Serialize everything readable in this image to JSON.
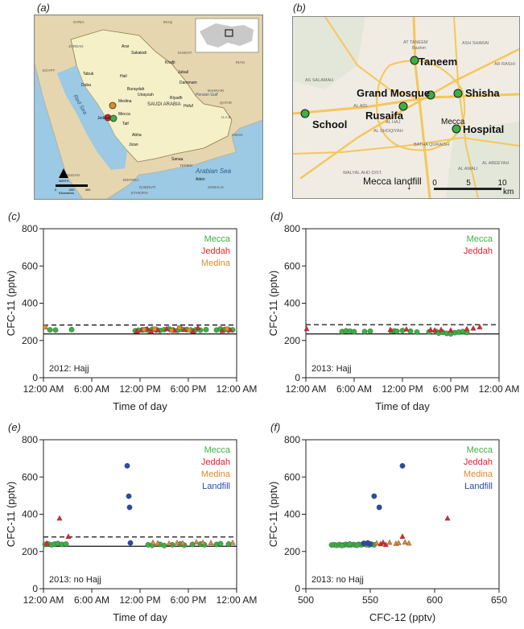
{
  "panels": {
    "a": {
      "label": "(a)",
      "map": {
        "sea_labels": [
          "Red Sea",
          "Persian Gulf",
          "Arabian Sea"
        ],
        "places": [
          "SYRIA",
          "IRAQ",
          "IRAN",
          "EGYPT",
          "JORDAN",
          "KUWAIT",
          "QATAR",
          "U.A.E.",
          "OMAN",
          "YEMEN",
          "SUDAN",
          "ERITREA",
          "ETHIOPIA",
          "SOMALIA",
          "DJIBOUTI",
          "BAHRAIN",
          "SAUDI ARABIA",
          "Arar",
          "Sakakah",
          "Tabuk",
          "Duba",
          "Hail",
          "Buraydah",
          "Medina",
          "Jeddah",
          "Mecca",
          "Taif",
          "Abha",
          "Jizan",
          "Riyadh",
          "Hofuf",
          "Dammam",
          "Jubail",
          "Khafji",
          "Unayzah",
          "Sanaa",
          "Aden"
        ],
        "north": "NORTH",
        "scale": [
          "0",
          "200",
          "400"
        ],
        "scale_unit": "Kilometres"
      }
    },
    "b": {
      "label": "(b)",
      "map": {
        "sites": [
          "Taneem",
          "Grand Mosque",
          "Shisha",
          "School",
          "Rusaifa",
          "Mecca",
          "Hospital"
        ],
        "landfill_label": "Mecca landfill",
        "landfill_arrow": "↓",
        "district_labels": [
          "AT TANEEM",
          "Bashm",
          "ASH SHARAI",
          "AR RASHI",
          "AS SALAMAH",
          "AL HAJ",
          "AL ADL",
          "AL SHOQIYAH",
          "BATHA QURAISH",
          "WALYAL AHD DIST.",
          "AL AWALI",
          "AL ABEEYAH"
        ],
        "scale_ticks": [
          "0",
          "5",
          "10"
        ],
        "scale_unit": "km"
      }
    }
  },
  "colors": {
    "Mecca": "#3cb043",
    "Jeddah": "#e8212b",
    "Medina": "#e08a2c",
    "Landfill": "#2b4aa8",
    "map_land": "#f5f0c8",
    "map_sea": "#9cc9e3",
    "map_other_land": "#e6d6b0",
    "street_bg": "#f0ece4",
    "road": "#f5c65a"
  },
  "chart_data": [
    {
      "panel": "(c)",
      "type": "scatter",
      "x_type": "time",
      "annotation": "2012: Hajj",
      "xlabel": "Time of day",
      "ylabel": "CFC-11 (pptv)",
      "xlim": [
        0,
        24
      ],
      "ylim": [
        0,
        800
      ],
      "xticks": [
        0,
        6,
        12,
        18,
        24
      ],
      "xticklabels": [
        "12:00 AM",
        "6:00 AM",
        "12:00 PM",
        "6:00 PM",
        "12:00 AM"
      ],
      "yticks": [
        0,
        200,
        400,
        600,
        800
      ],
      "yticklabels": [
        "0",
        "200",
        "400",
        "600",
        "800"
      ],
      "hlines": {
        "dashed": 283,
        "solid": 235
      },
      "legend": [
        "Mecca",
        "Jeddah",
        "Medina"
      ],
      "series": [
        {
          "name": "Mecca",
          "marker": "circle",
          "x": [
            0.8,
            1.5,
            3.5,
            11.4,
            11.8,
            12.3,
            12.7,
            13.1,
            13.5,
            14.0,
            14.5,
            15.0,
            15.6,
            16.1,
            16.7,
            17.2,
            17.8,
            18.3,
            18.9,
            19.5,
            20.2,
            21.5,
            22.0,
            22.5,
            23.0,
            23.5
          ],
          "y": [
            257,
            256,
            258,
            252,
            255,
            257,
            258,
            253,
            260,
            256,
            254,
            258,
            262,
            257,
            255,
            260,
            258,
            256,
            257,
            255,
            258,
            256,
            262,
            258,
            255,
            257
          ]
        },
        {
          "name": "Jeddah",
          "marker": "triangle",
          "x": [
            11.6,
            12.2,
            12.9,
            13.4,
            14.2,
            15.3,
            16.3,
            17.5,
            18.6,
            19.2,
            22.2,
            23.2
          ],
          "y": [
            250,
            255,
            262,
            248,
            257,
            262,
            253,
            258,
            250,
            268,
            252,
            256
          ]
        },
        {
          "name": "Medina",
          "marker": "square",
          "x": [
            0.2,
            12.5,
            13.8,
            15.9,
            16.9,
            18.1,
            22.8
          ],
          "y": [
            272,
            258,
            262,
            255,
            268,
            257,
            262
          ]
        }
      ]
    },
    {
      "panel": "(d)",
      "type": "scatter",
      "x_type": "time",
      "annotation": "2013: Hajj",
      "xlabel": "Time of day",
      "ylabel": "CFC-11 (pptv)",
      "xlim": [
        0,
        24
      ],
      "ylim": [
        0,
        800
      ],
      "xticks": [
        0,
        6,
        12,
        18,
        24
      ],
      "xticklabels": [
        "12:00 AM",
        "6:00 AM",
        "12:00 PM",
        "6:00 PM",
        "12:00 AM"
      ],
      "yticks": [
        0,
        200,
        400,
        600,
        800
      ],
      "yticklabels": [
        "0",
        "200",
        "400",
        "600",
        "800"
      ],
      "hlines": {
        "dashed": 285,
        "solid": 235
      },
      "legend": [
        "Mecca",
        "Jeddah"
      ],
      "series": [
        {
          "name": "Mecca",
          "marker": "circle",
          "x": [
            4.5,
            5.0,
            5.5,
            6.0,
            7.3,
            8.0,
            10.6,
            11.0,
            11.3,
            12.0,
            13.0,
            13.8,
            15.3,
            16.2,
            16.5,
            17.0,
            17.5,
            18.0,
            18.5,
            19.0,
            19.5,
            20.0
          ],
          "y": [
            248,
            252,
            250,
            247,
            248,
            250,
            250,
            251,
            249,
            253,
            250,
            245,
            246,
            248,
            240,
            244,
            238,
            236,
            242,
            245,
            248,
            243
          ]
        },
        {
          "name": "Jeddah",
          "marker": "triangle",
          "x": [
            0.1,
            10.5,
            12.5,
            15.5,
            16.0,
            16.8,
            18.0,
            20.0,
            20.8,
            21.6
          ],
          "y": [
            262,
            258,
            260,
            258,
            255,
            258,
            255,
            262,
            265,
            272
          ]
        }
      ]
    },
    {
      "panel": "(e)",
      "type": "scatter",
      "x_type": "time",
      "annotation": "2013: no Hajj",
      "xlabel": "Time of day",
      "ylabel": "CFC-11 (pptv)",
      "xlim": [
        0,
        24
      ],
      "ylim": [
        0,
        800
      ],
      "xticks": [
        0,
        6,
        12,
        18,
        24
      ],
      "xticklabels": [
        "12:00 AM",
        "6:00 AM",
        "12:00 PM",
        "6:00 PM",
        "12:00 AM"
      ],
      "yticks": [
        0,
        200,
        400,
        600,
        800
      ],
      "yticklabels": [
        "0",
        "200",
        "400",
        "600",
        "800"
      ],
      "hlines": {
        "dashed": 278,
        "solid": 228
      },
      "legend": [
        "Mecca",
        "Jeddah",
        "Medina",
        "Landfill"
      ],
      "series": [
        {
          "name": "Mecca",
          "marker": "circle",
          "x": [
            0.2,
            0.6,
            1.0,
            1.4,
            1.8,
            2.3,
            2.8,
            13.0,
            13.5,
            14.5,
            15.0,
            16.0,
            17.0,
            17.5,
            18.5,
            19.5,
            20.0,
            21.5,
            22.0,
            23.0
          ],
          "y": [
            238,
            240,
            236,
            240,
            243,
            238,
            240,
            236,
            233,
            238,
            232,
            236,
            240,
            234,
            238,
            240,
            236,
            238,
            242,
            240
          ]
        },
        {
          "name": "Jeddah",
          "marker": "triangle",
          "x": [
            2.0,
            3.1,
            0.4
          ],
          "y": [
            378,
            280,
            244
          ]
        },
        {
          "name": "Medina",
          "marker": "triangle",
          "x": [
            13.6,
            14.2,
            15.6,
            16.6,
            17.3,
            19.0,
            19.8,
            20.8,
            23.5
          ],
          "y": [
            248,
            245,
            243,
            247,
            245,
            250,
            248,
            246,
            247
          ]
        },
        {
          "name": "Landfill",
          "marker": "circle",
          "x": [
            10.4,
            10.6,
            10.7,
            10.8
          ],
          "y": [
            660,
            497,
            437,
            246
          ]
        }
      ]
    },
    {
      "panel": "(f)",
      "type": "scatter",
      "annotation": "2013: no Hajj",
      "xlabel": "CFC-12 (pptv)",
      "ylabel": "CFC-11 (pptv)",
      "xlim": [
        500,
        650
      ],
      "ylim": [
        0,
        800
      ],
      "xticks": [
        500,
        550,
        600,
        650
      ],
      "xticklabels": [
        "500",
        "550",
        "600",
        "650"
      ],
      "yticks": [
        0,
        200,
        400,
        600,
        800
      ],
      "yticklabels": [
        "0",
        "200",
        "400",
        "600",
        "800"
      ],
      "legend": [
        "Mecca",
        "Jeddah",
        "Medina",
        "Landfill"
      ],
      "series": [
        {
          "name": "Mecca",
          "marker": "circle",
          "x": [
            520,
            522,
            524,
            526,
            528,
            530,
            531,
            533,
            535,
            537,
            539,
            541,
            543,
            545,
            547,
            549,
            551,
            553,
            528,
            534,
            540
          ],
          "y": [
            235,
            236,
            233,
            237,
            234,
            236,
            238,
            235,
            236,
            237,
            234,
            238,
            236,
            239,
            237,
            235,
            238,
            236,
            232,
            240,
            234
          ]
        },
        {
          "name": "Jeddah",
          "marker": "triangle",
          "x": [
            610,
            558,
            560,
            562,
            575
          ],
          "y": [
            378,
            240,
            248,
            236,
            280
          ]
        },
        {
          "name": "Medina",
          "marker": "triangle",
          "x": [
            555,
            565,
            570,
            572,
            577,
            580
          ],
          "y": [
            245,
            248,
            242,
            246,
            250,
            244
          ]
        },
        {
          "name": "Landfill",
          "marker": "circle",
          "x": [
            575,
            553,
            557,
            548,
            550,
            545
          ],
          "y": [
            660,
            497,
            437,
            246,
            240,
            244
          ]
        }
      ]
    }
  ]
}
